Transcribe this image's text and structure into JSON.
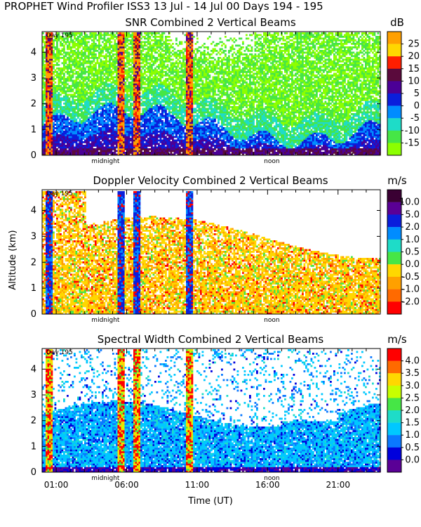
{
  "page": {
    "title": "PROPHET Wind Profiler ISS3  13 Jul - 14 Jul 00 Days 194 - 195",
    "xlabel": "Time (UT)",
    "ylabel": "Altitude (km)"
  },
  "chart_data": [
    {
      "type": "heatmap",
      "title": "SNR Combined 2 Vertical Beams",
      "unit": "dB",
      "day_label": "Day 195",
      "ylim": [
        0,
        4.8
      ],
      "yticks": [
        "0",
        "1",
        "2",
        "3",
        "4"
      ],
      "xlim_hours_ut": [
        0,
        24
      ],
      "x_annotations": [
        "midnight",
        "noon"
      ],
      "colorbar_labels": [
        "25",
        "20",
        "15",
        "10",
        "5",
        "0",
        "-5",
        "-10",
        "-15"
      ],
      "colorbar_colors": [
        "#ffa000",
        "#ffd700",
        "#ff1e00",
        "#5a0a3c",
        "#4b0096",
        "#0a1edc",
        "#008cff",
        "#1edcc8",
        "#46e646",
        "#8cff00"
      ]
    },
    {
      "type": "heatmap",
      "title": "Doppler Velocity Combined 2 Vertical Beams",
      "unit": "m/s",
      "day_label": "Day 195",
      "ylim": [
        0,
        4.8
      ],
      "yticks": [
        "0",
        "1",
        "2",
        "3",
        "4"
      ],
      "xlim_hours_ut": [
        0,
        24
      ],
      "x_annotations": [
        "midnight",
        "noon"
      ],
      "colorbar_labels": [
        "10.0",
        "5.0",
        "2.0",
        "1.0",
        "0.5",
        "0.0",
        "-0.5",
        "-1.0",
        "-2.0"
      ],
      "colorbar_colors": [
        "#3a0033",
        "#5a0096",
        "#0a1edc",
        "#008cff",
        "#1edcc8",
        "#46e646",
        "#ffd700",
        "#ffa000",
        "#ff6a00",
        "#ff0000"
      ]
    },
    {
      "type": "heatmap",
      "title": "Spectral Width Combined 2 Vertical Beams",
      "unit": "m/s",
      "day_label": "Day 195",
      "ylim": [
        0,
        4.8
      ],
      "yticks": [
        "0",
        "1",
        "2",
        "3",
        "4"
      ],
      "xlim_hours_ut": [
        0,
        24
      ],
      "x_annotations": [
        "midnight",
        "noon"
      ],
      "xtick_labels": [
        "01:00",
        "06:00",
        "11:00",
        "16:00",
        "21:00"
      ],
      "colorbar_labels": [
        "4.0",
        "3.5",
        "3.0",
        "2.5",
        "2.0",
        "1.5",
        "1.0",
        "0.5",
        "0.0"
      ],
      "colorbar_colors": [
        "#ff0000",
        "#ff6a00",
        "#ffd700",
        "#c8ff00",
        "#46e646",
        "#1edcc8",
        "#00c8ff",
        "#0a78ff",
        "#0000dc",
        "#5a0096"
      ]
    }
  ]
}
